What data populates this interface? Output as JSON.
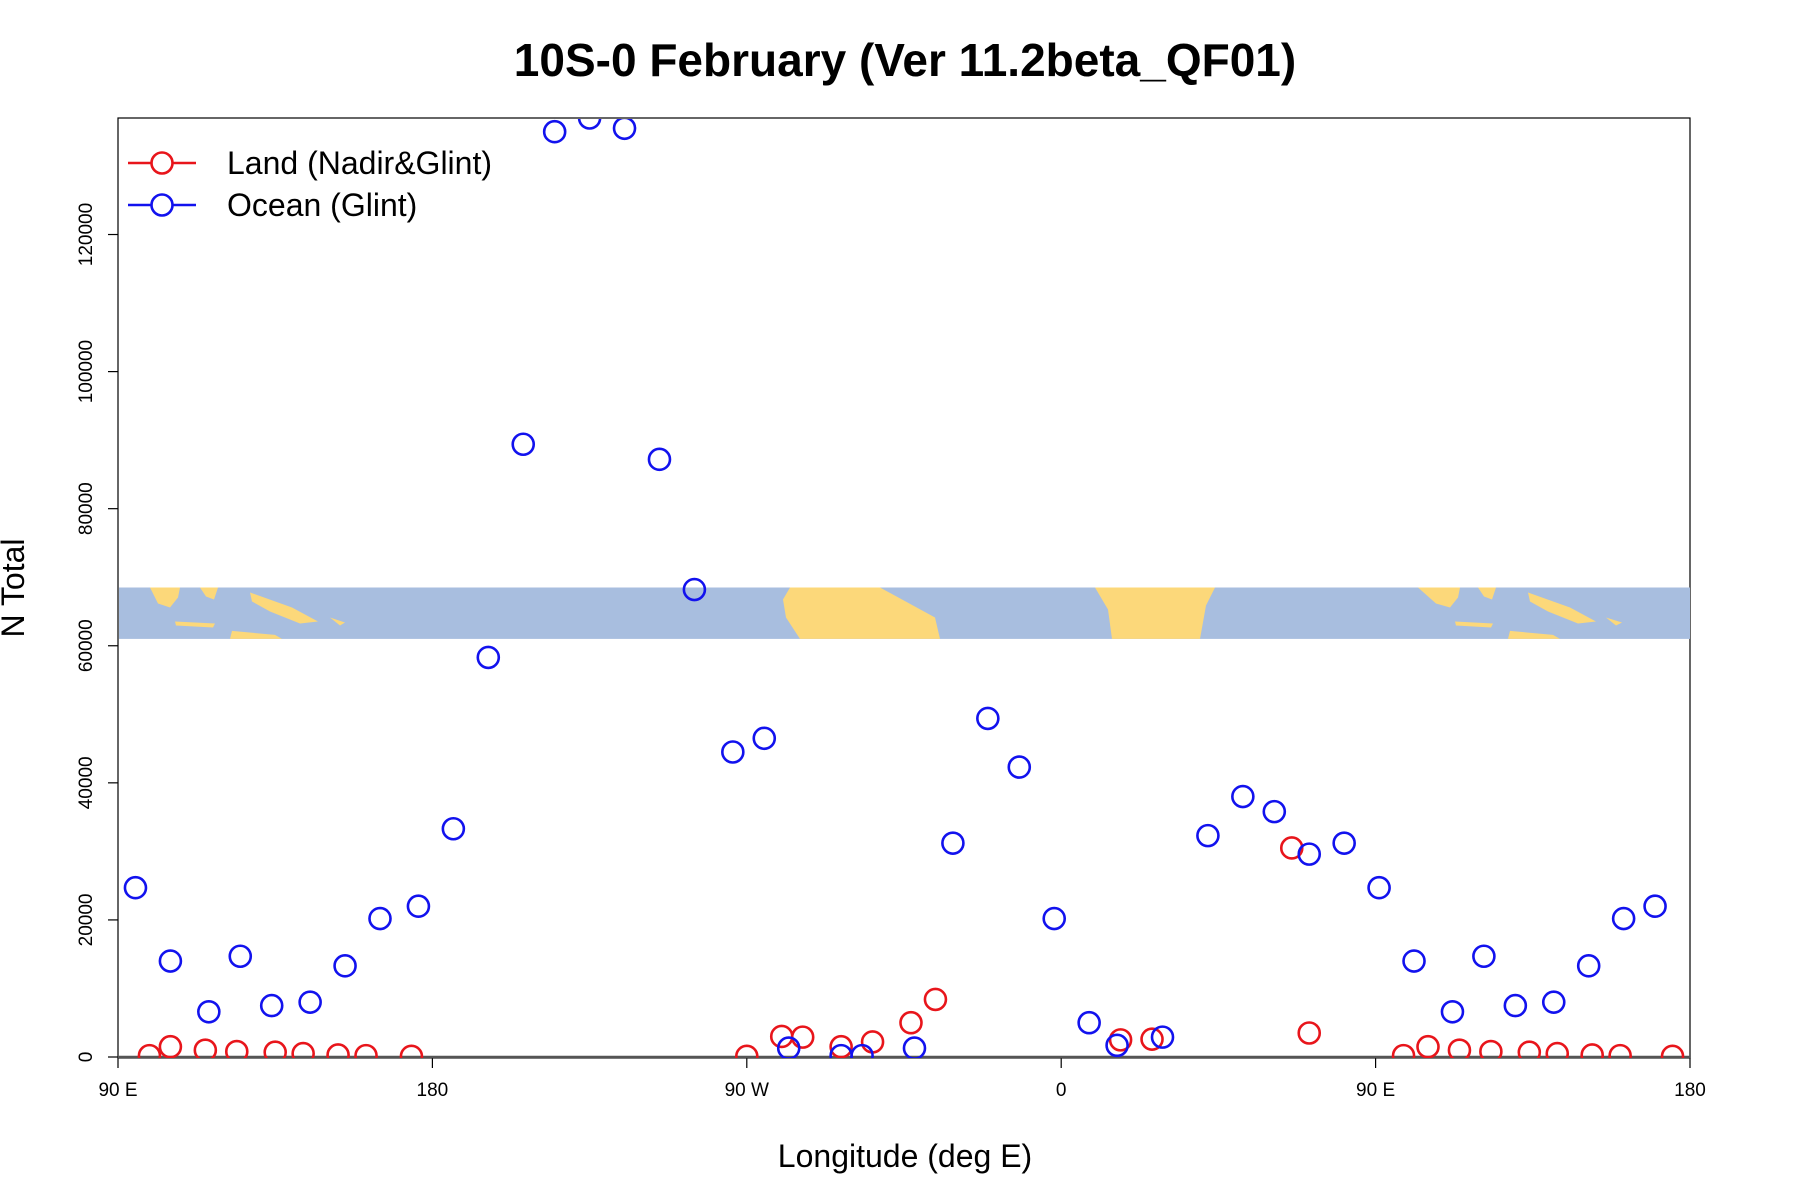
{
  "chart_data": {
    "type": "scatter",
    "title": "10S-0 February (Ver 11.2beta_QF01)",
    "xlabel": "Longitude (deg E)",
    "ylabel": "N Total",
    "x_domain": [
      90,
      540
    ],
    "ylim": [
      0,
      137000
    ],
    "x_ticks": [
      {
        "value": 90,
        "label": "90 E"
      },
      {
        "value": 180,
        "label": "180"
      },
      {
        "value": 270,
        "label": "90 W"
      },
      {
        "value": 360,
        "label": "0"
      },
      {
        "value": 450,
        "label": "90 E"
      },
      {
        "value": 540,
        "label": "180"
      }
    ],
    "y_ticks": [
      {
        "value": 0,
        "label": "0"
      },
      {
        "value": 20000,
        "label": "20000"
      },
      {
        "value": 40000,
        "label": "40000"
      },
      {
        "value": 60000,
        "label": "60000"
      },
      {
        "value": 80000,
        "label": "80000"
      },
      {
        "value": 100000,
        "label": "100000"
      },
      {
        "value": 120000,
        "label": "120000"
      }
    ],
    "map_band_ylim": [
      61000,
      68500
    ],
    "legend_position": "top-left",
    "series": [
      {
        "name": "Land (Nadir&Glint)",
        "color": "#e8151b",
        "points": [
          [
            99,
            200
          ],
          [
            105,
            1500
          ],
          [
            115,
            1000
          ],
          [
            124,
            800
          ],
          [
            135,
            700
          ],
          [
            143,
            500
          ],
          [
            153,
            300
          ],
          [
            161,
            200
          ],
          [
            174,
            100
          ],
          [
            270,
            100
          ],
          [
            280,
            3000
          ],
          [
            286,
            2900
          ],
          [
            297,
            1500
          ],
          [
            306,
            2200
          ],
          [
            317,
            5000
          ],
          [
            324,
            8400
          ],
          [
            377,
            2500
          ],
          [
            386,
            2600
          ],
          [
            426,
            30500
          ],
          [
            431,
            3500
          ],
          [
            458,
            200
          ],
          [
            465,
            1500
          ],
          [
            474,
            1000
          ],
          [
            483,
            800
          ],
          [
            494,
            700
          ],
          [
            502,
            500
          ],
          [
            512,
            300
          ],
          [
            520,
            200
          ],
          [
            535,
            100
          ]
        ]
      },
      {
        "name": "Ocean (Glint)",
        "color": "#1212ee",
        "points": [
          [
            95,
            24700
          ],
          [
            105,
            14000
          ],
          [
            116,
            6600
          ],
          [
            125,
            14700
          ],
          [
            134,
            7500
          ],
          [
            145,
            8000
          ],
          [
            155,
            13300
          ],
          [
            165,
            20200
          ],
          [
            176,
            22000
          ],
          [
            186,
            33300
          ],
          [
            196,
            58300
          ],
          [
            206,
            89400
          ],
          [
            215,
            135000
          ],
          [
            225,
            137000
          ],
          [
            235,
            135500
          ],
          [
            245,
            87200
          ],
          [
            255,
            68200
          ],
          [
            266,
            44500
          ],
          [
            275,
            46500
          ],
          [
            282,
            1300
          ],
          [
            297,
            200
          ],
          [
            303,
            200
          ],
          [
            318,
            1300
          ],
          [
            329,
            31200
          ],
          [
            339,
            49400
          ],
          [
            348,
            42300
          ],
          [
            358,
            20200
          ],
          [
            368,
            5000
          ],
          [
            376,
            1700
          ],
          [
            389,
            2900
          ],
          [
            402,
            32300
          ],
          [
            412,
            38000
          ],
          [
            421,
            35800
          ],
          [
            431,
            29600
          ],
          [
            441,
            31200
          ],
          [
            451,
            24700
          ],
          [
            461,
            14000
          ],
          [
            472,
            6600
          ],
          [
            481,
            14700
          ],
          [
            490,
            7500
          ],
          [
            501,
            8000
          ],
          [
            511,
            13300
          ],
          [
            521,
            20200
          ],
          [
            530,
            22000
          ]
        ]
      }
    ]
  }
}
